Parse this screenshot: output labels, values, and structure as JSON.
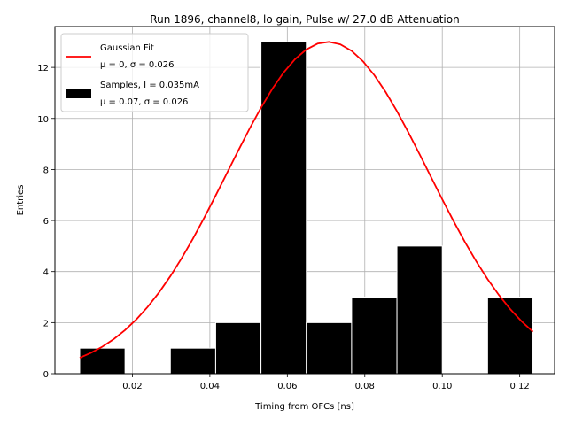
{
  "chart_data": {
    "type": "bar",
    "title": "Run 1896, channel8, lo gain, Pulse w/ 27.0 dB Attenuation",
    "xlabel": "Timing from OFCs [ns]",
    "ylabel": "Entries",
    "xlim": [
      0.0,
      0.129
    ],
    "ylim": [
      0,
      13.6
    ],
    "grid": true,
    "legend_position": "top-left",
    "x_ticks": [
      {
        "value": 0.02,
        "label": "0.02"
      },
      {
        "value": 0.04,
        "label": "0.04"
      },
      {
        "value": 0.06,
        "label": "0.06"
      },
      {
        "value": 0.08,
        "label": "0.08"
      },
      {
        "value": 0.1,
        "label": "0.10"
      },
      {
        "value": 0.12,
        "label": "0.12"
      }
    ],
    "y_ticks": [
      {
        "value": 0,
        "label": "0"
      },
      {
        "value": 2,
        "label": "2"
      },
      {
        "value": 4,
        "label": "4"
      },
      {
        "value": 6,
        "label": "6"
      },
      {
        "value": 8,
        "label": "8"
      },
      {
        "value": 10,
        "label": "10"
      },
      {
        "value": 12,
        "label": "12"
      }
    ],
    "histogram": {
      "name": "Samples, I = 0.035mA",
      "stats": "μ = 0.07, σ = 0.026",
      "color": "#000000",
      "bin_edges": [
        0.0064,
        0.0181,
        0.0298,
        0.0415,
        0.0532,
        0.0649,
        0.0766,
        0.0883,
        0.1,
        0.1117,
        0.1234
      ],
      "counts": [
        1,
        0,
        1,
        2,
        13,
        2,
        3,
        5,
        0,
        3
      ]
    },
    "fit": {
      "name": "Gaussian Fit",
      "stats": "μ = 0, σ = 0.026",
      "color": "#ff0000",
      "amplitude": 13.0,
      "mean": 0.0705,
      "sigma": 0.026,
      "x_range": [
        0.0064,
        0.1234
      ]
    }
  }
}
